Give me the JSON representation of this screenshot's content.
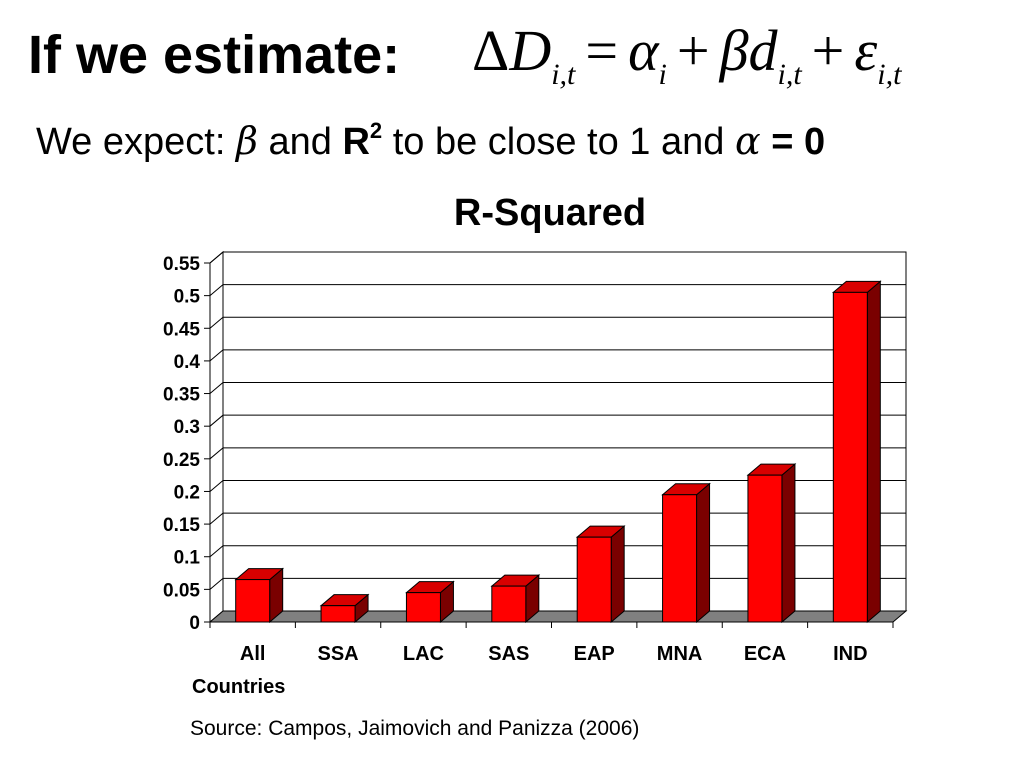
{
  "slide": {
    "title": "If we estimate:",
    "equation": {
      "lhs_delta": "Δ",
      "lhs_var": "D",
      "lhs_sub": "i,t",
      "eq": "=",
      "alpha": "α",
      "alpha_sub": "i",
      "plus1": "+",
      "beta": "β",
      "d": "d",
      "d_sub": "i,t",
      "plus2": "+",
      "eps": "ε",
      "eps_sub": "i,t"
    },
    "subtitle": {
      "part1": "We expect: ",
      "beta": "β",
      "part2": " and ",
      "r": "R",
      "r_sup": "2",
      "part3": " to be close to 1 and ",
      "alpha": "α",
      "part4": " = 0"
    },
    "source": "Source: Campos, Jaimovich and Panizza (2006)"
  },
  "chart_data": {
    "type": "bar",
    "title": "R-Squared",
    "categories": [
      "All Countries",
      "SSA",
      "LAC",
      "SAS",
      "EAP",
      "MNA",
      "ECA",
      "IND"
    ],
    "category_lines": [
      [
        "All",
        "Countries"
      ],
      [
        "SSA"
      ],
      [
        "LAC"
      ],
      [
        "SAS"
      ],
      [
        "EAP"
      ],
      [
        "MNA"
      ],
      [
        "ECA"
      ],
      [
        "IND"
      ]
    ],
    "values": [
      0.065,
      0.025,
      0.045,
      0.055,
      0.13,
      0.195,
      0.225,
      0.505
    ],
    "yticks": [
      "0",
      "0.05",
      "0.1",
      "0.15",
      "0.2",
      "0.25",
      "0.3",
      "0.35",
      "0.4",
      "0.45",
      "0.5",
      "0.55"
    ],
    "ylim": [
      0,
      0.55
    ],
    "xlabel": "",
    "ylabel": "",
    "grid": true,
    "legend": "none",
    "colors": {
      "bar_front": "#ff0000",
      "bar_top": "#d80000",
      "bar_side": "#7a0000",
      "floor": "#808080",
      "grid": "#000000"
    }
  }
}
